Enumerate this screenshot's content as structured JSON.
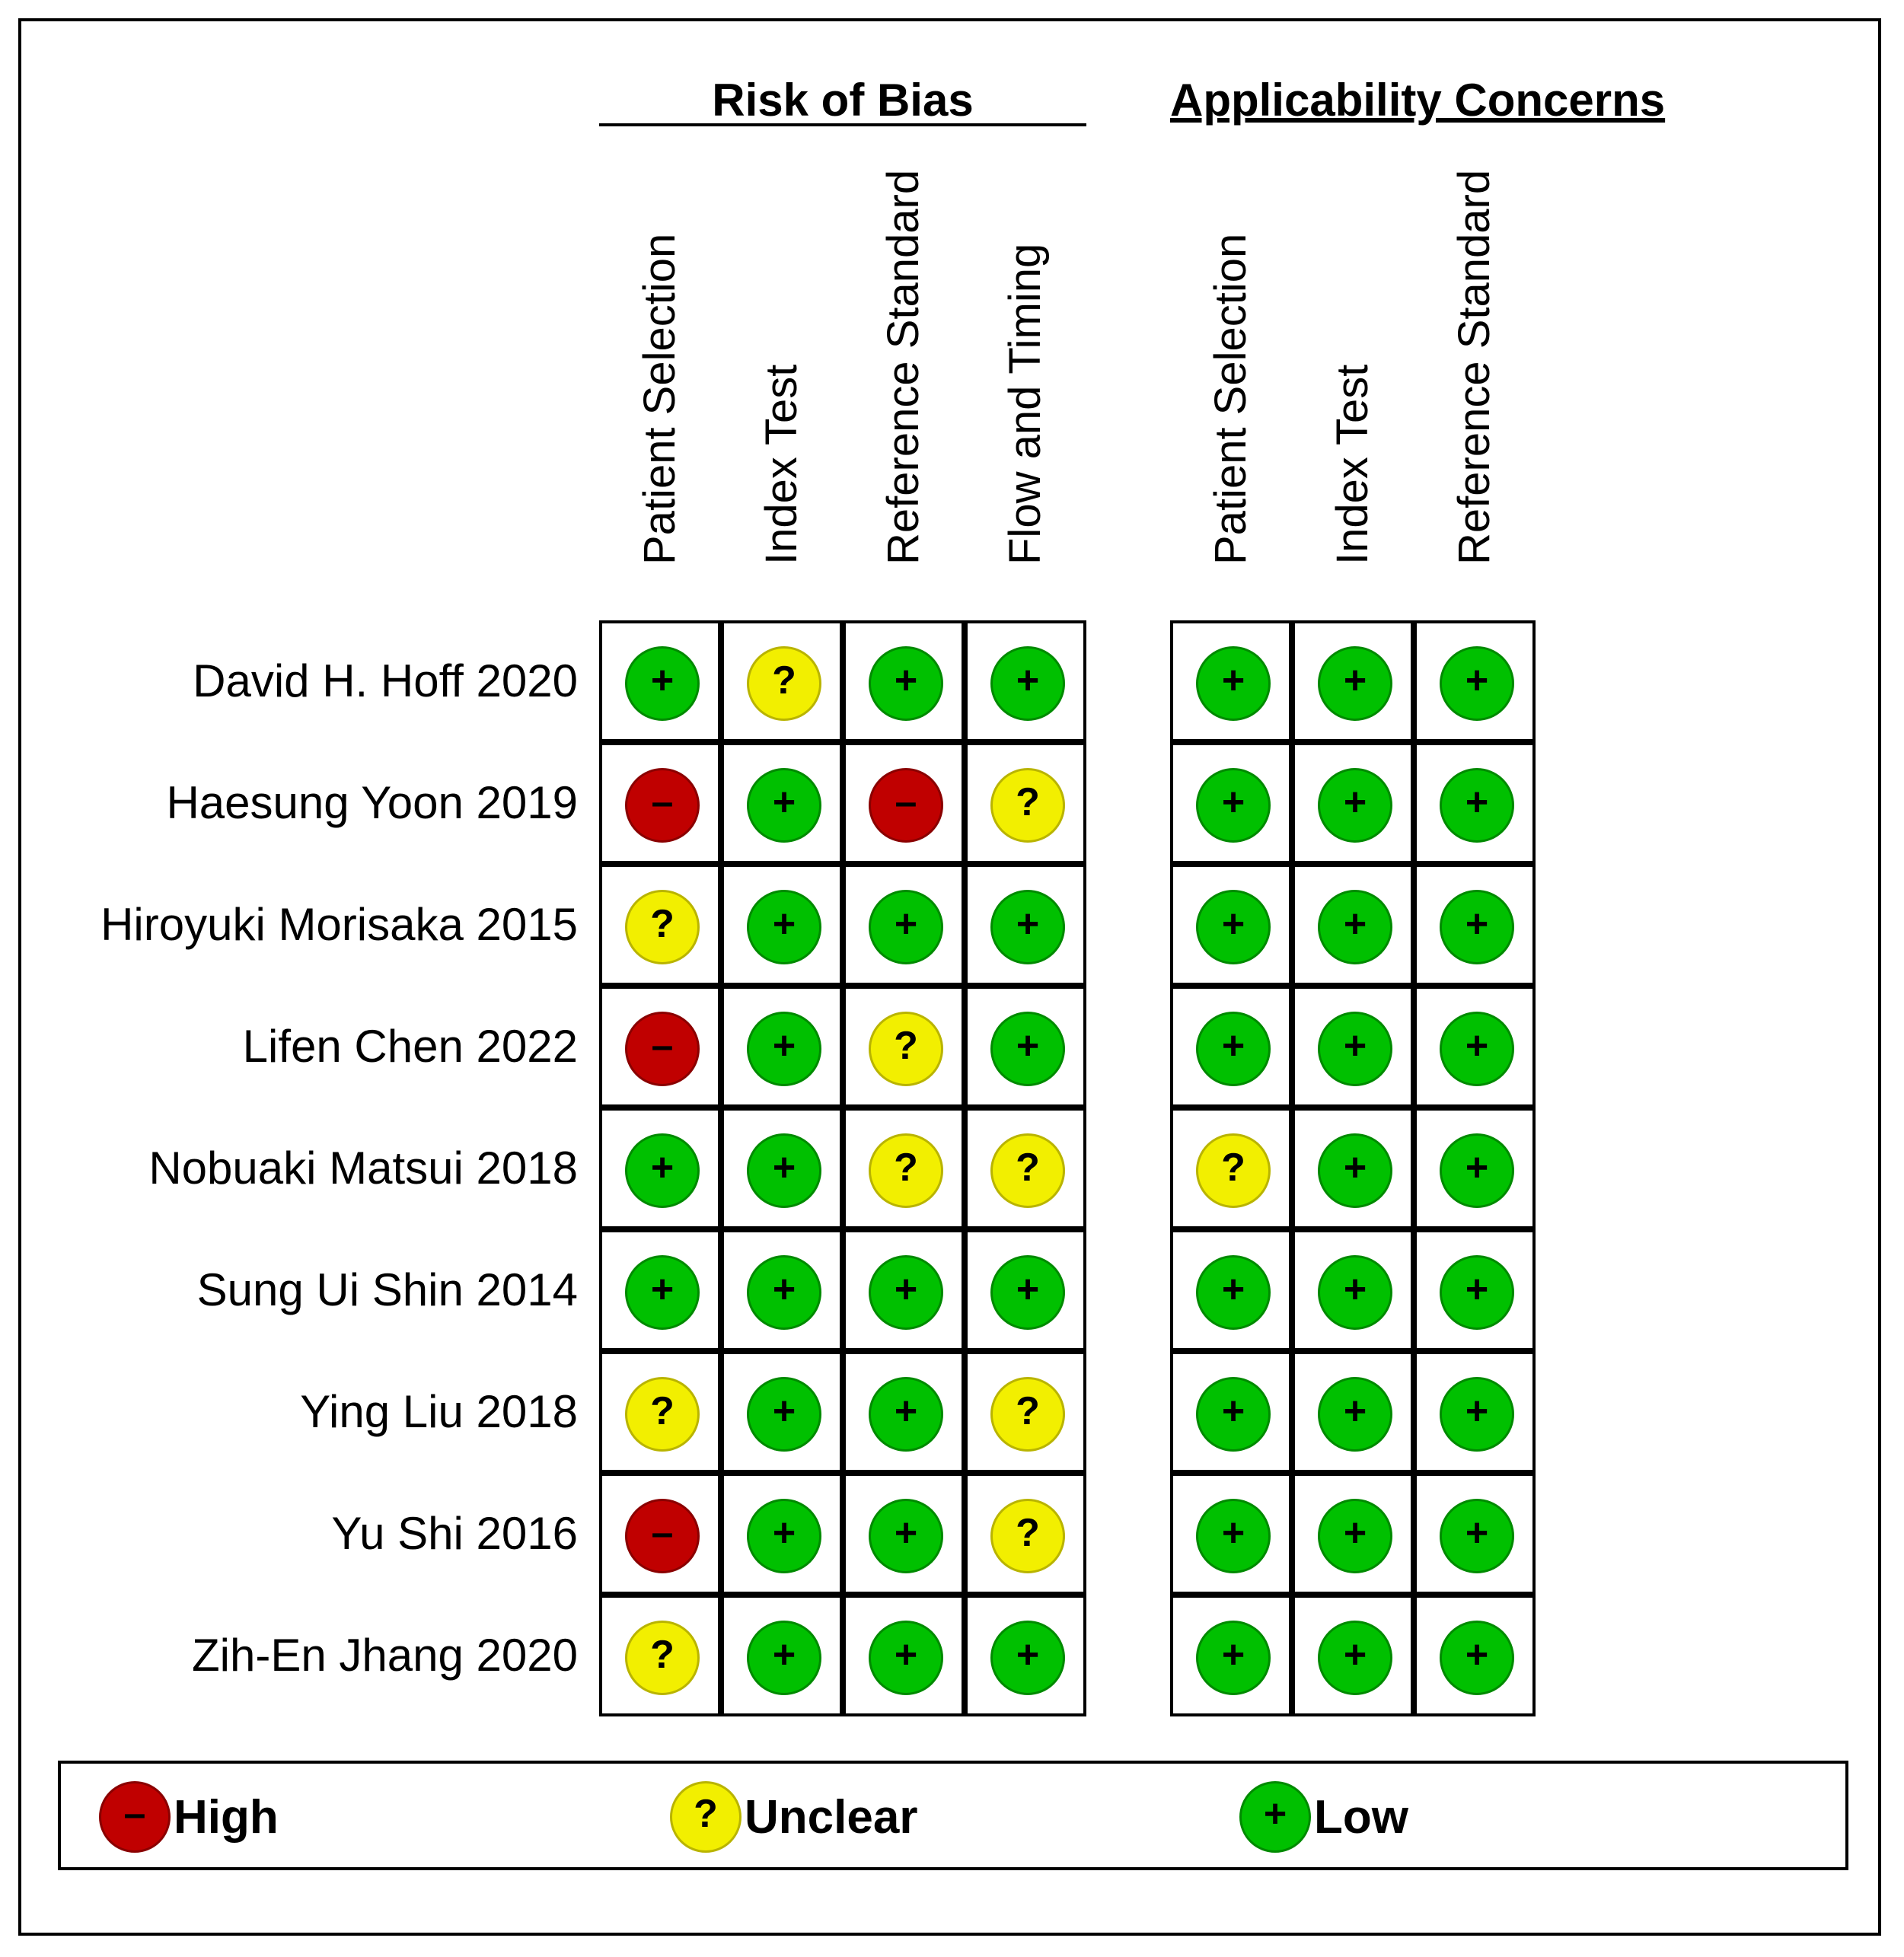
{
  "groups": [
    {
      "title": "Risk of Bias",
      "columns": [
        "Patient Selection",
        "Index Test",
        "Reference Standard",
        "Flow and Timing"
      ]
    },
    {
      "title": "Applicability Concerns",
      "columns": [
        "Patient Selection",
        "Index Test",
        "Reference Standard"
      ]
    }
  ],
  "studies": [
    {
      "name": "David H. Hoff 2020",
      "risk": [
        "low",
        "unclear",
        "low",
        "low"
      ],
      "applicability": [
        "low",
        "low",
        "low"
      ]
    },
    {
      "name": "Haesung Yoon 2019",
      "risk": [
        "high",
        "low",
        "high",
        "unclear"
      ],
      "applicability": [
        "low",
        "low",
        "low"
      ]
    },
    {
      "name": "Hiroyuki Morisaka 2015",
      "risk": [
        "unclear",
        "low",
        "low",
        "low"
      ],
      "applicability": [
        "low",
        "low",
        "low"
      ]
    },
    {
      "name": "Lifen Chen 2022",
      "risk": [
        "high",
        "low",
        "unclear",
        "low"
      ],
      "applicability": [
        "low",
        "low",
        "low"
      ]
    },
    {
      "name": "Nobuaki Matsui 2018",
      "risk": [
        "low",
        "low",
        "unclear",
        "unclear"
      ],
      "applicability": [
        "unclear",
        "low",
        "low"
      ]
    },
    {
      "name": "Sung Ui Shin 2014",
      "risk": [
        "low",
        "low",
        "low",
        "low"
      ],
      "applicability": [
        "low",
        "low",
        "low"
      ]
    },
    {
      "name": "Ying Liu 2018",
      "risk": [
        "unclear",
        "low",
        "low",
        "unclear"
      ],
      "applicability": [
        "low",
        "low",
        "low"
      ]
    },
    {
      "name": "Yu Shi 2016",
      "risk": [
        "high",
        "low",
        "low",
        "unclear"
      ],
      "applicability": [
        "low",
        "low",
        "low"
      ]
    },
    {
      "name": "Zih-En Jhang 2020",
      "risk": [
        "unclear",
        "low",
        "low",
        "low"
      ],
      "applicability": [
        "low",
        "low",
        "low"
      ]
    }
  ],
  "ratings": {
    "high": {
      "label": "High",
      "symbol": "–",
      "color": "#c00000"
    },
    "unclear": {
      "label": "Unclear",
      "symbol": "?",
      "color": "#f2ef00"
    },
    "low": {
      "label": "Low",
      "symbol": "+",
      "color": "#00c000"
    }
  },
  "legend": [
    "high",
    "unclear",
    "low"
  ]
}
